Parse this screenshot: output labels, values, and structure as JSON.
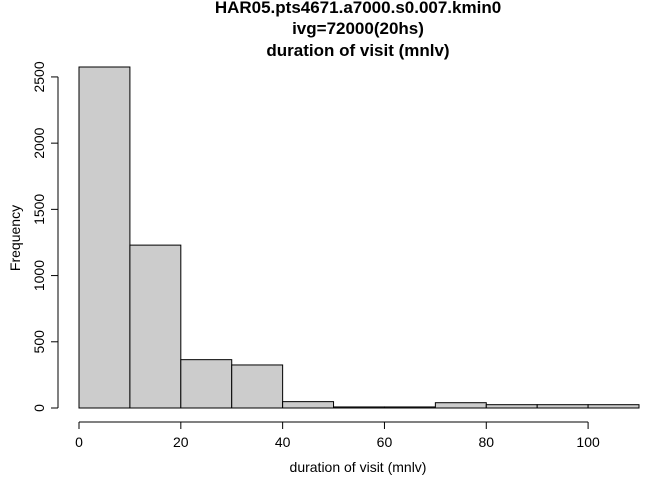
{
  "chart_data": {
    "type": "bar",
    "title_lines": [
      "HAR05.pts4671.a7000.s0.007.kmin0",
      "ivg=72000(20hs)",
      "duration of visit (mnlv)"
    ],
    "xlabel": "duration of visit (mnlv)",
    "ylabel": "Frequency",
    "bin_edges": [
      0,
      10,
      20,
      30,
      40,
      50,
      60,
      70,
      80,
      90,
      100,
      110
    ],
    "values": [
      2575,
      1230,
      365,
      325,
      48,
      8,
      8,
      40,
      25,
      25,
      25
    ],
    "xlim": [
      0,
      110
    ],
    "ylim": [
      0,
      2575
    ],
    "x_ticks": [
      "0",
      "20",
      "40",
      "60",
      "80",
      "100"
    ],
    "y_ticks": [
      "0",
      "500",
      "1000",
      "1500",
      "2000",
      "2500"
    ],
    "grid": false,
    "colors": {
      "bar_fill": "#cccccc",
      "bar_stroke": "#000000",
      "axis": "#000000"
    }
  }
}
